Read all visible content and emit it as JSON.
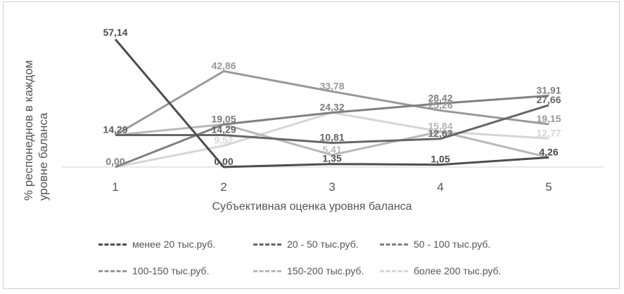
{
  "chart_data": {
    "type": "line",
    "x": [
      1,
      2,
      3,
      4,
      5
    ],
    "xlabel": "Субъективная оценка уровня баланса",
    "ylabel": "% респонеднов в каждом уровне баланса",
    "ylim": [
      0,
      60
    ],
    "grid": false,
    "legend_position": "bottom",
    "series": [
      {
        "name": "менее 20 тыс.руб.",
        "values": [
          57.14,
          0.0,
          1.35,
          1.05,
          4.26
        ],
        "labels": [
          "57,14",
          "0,00",
          "1,35",
          "1,05",
          "4,26"
        ],
        "color": "#4d4d4d"
      },
      {
        "name": "20 - 50  тыс.руб.",
        "values": [
          14.29,
          14.29,
          10.81,
          12.63,
          27.66
        ],
        "labels": [
          "14,29",
          "14,29",
          "10,81",
          "12,63",
          "27,66"
        ],
        "color": "#666666"
      },
      {
        "name": "50 - 100  тыс.руб.",
        "values": [
          0.0,
          19.05,
          24.32,
          28.42,
          31.91
        ],
        "labels": [
          "0,00",
          "19,05",
          "24,32",
          "28,42",
          "31,91"
        ],
        "color": "#808080"
      },
      {
        "name": "100-150  тыс.руб.",
        "values": [
          14.29,
          42.86,
          33.78,
          25.26,
          19.15
        ],
        "labels": [
          "14,29",
          "42,86",
          "33,78",
          "25,26",
          "19,15"
        ],
        "color": "#999999"
      },
      {
        "name": "150-200  тыс.руб.",
        "values": [
          14.29,
          19.05,
          5.41,
          15.84,
          4.26
        ],
        "labels": [
          "14,29",
          "19,05",
          "5,41",
          "15,84",
          "4,26"
        ],
        "color": "#b8b8b8"
      },
      {
        "name": "более 200  тыс.руб.",
        "values": [
          0.0,
          9.52,
          24.32,
          15.84,
          12.77
        ],
        "labels": [
          "0,00",
          "9,52",
          "24,32",
          "15,84",
          "12,77"
        ],
        "color": "#d6d6d6"
      }
    ]
  }
}
